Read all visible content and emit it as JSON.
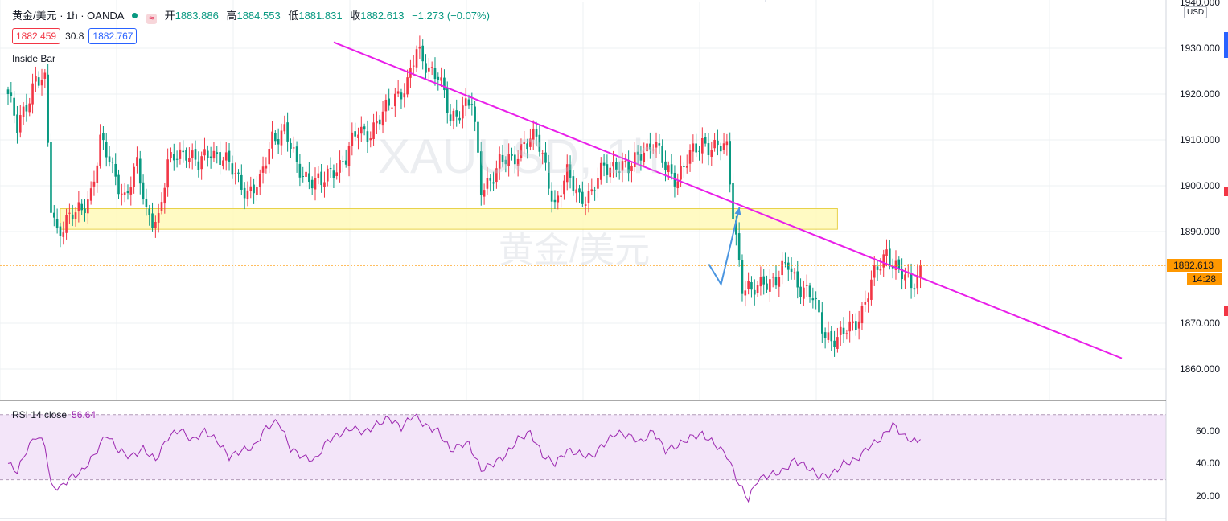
{
  "legend": {
    "symbol": "黄金/美元 · 1h · OANDA",
    "open_label": "开",
    "open": "1883.886",
    "high_label": "高",
    "high": "1884.553",
    "low_label": "低",
    "low": "1881.831",
    "close_label": "收",
    "close": "1882.613",
    "change": "−1.273 (−0.07%)",
    "pill_icon": "≈"
  },
  "quote_boxes": {
    "bid": "1882.459",
    "spread": "30.8",
    "ask": "1882.767"
  },
  "indicator_name": "Inside Bar",
  "watermark": {
    "ticker": "XAUUSD, 1h",
    "name": "黄金/美元"
  },
  "price_axis": {
    "currency": "USD",
    "ticks": [
      "1940.000",
      "1930.000",
      "1920.000",
      "1910.000",
      "1900.000",
      "1890.000",
      "1870.000",
      "1860.000"
    ],
    "last_price": "1882.613",
    "countdown": "14:28",
    "hidden_tick_fragment": "188"
  },
  "rsi": {
    "label": "RSI 14 close",
    "value": "56.64",
    "ticks": [
      "60.00",
      "40.00",
      "20.00"
    ]
  },
  "colors": {
    "up": "#f23645",
    "down": "#089981",
    "trendline": "#e91ee9",
    "zone_fill": "#fff9b8",
    "zone_border": "#e8d24a",
    "arrow": "#4a95e0",
    "rsi_line": "#9c27b0",
    "rsi_band": "#f3e5f9",
    "last_price": "#ff9800"
  },
  "chart_data": {
    "type": "candlestick",
    "timeframe": "1h",
    "y_range": [
      1852,
      1942
    ],
    "rsi_range": [
      10,
      75
    ],
    "rsi_bands": [
      30,
      70
    ],
    "anchors": [
      [
        0,
        1920
      ],
      [
        3,
        1912
      ],
      [
        6,
        1918
      ],
      [
        9,
        1924
      ],
      [
        12,
        1922
      ],
      [
        14,
        1895
      ],
      [
        16,
        1890
      ],
      [
        19,
        1893
      ],
      [
        24,
        1894
      ],
      [
        27,
        1899
      ],
      [
        30,
        1910
      ],
      [
        34,
        1903
      ],
      [
        38,
        1898
      ],
      [
        42,
        1904
      ],
      [
        45,
        1894
      ],
      [
        49,
        1893
      ],
      [
        52,
        1904
      ],
      [
        55,
        1907
      ],
      [
        58,
        1908
      ],
      [
        62,
        1904
      ],
      [
        66,
        1908
      ],
      [
        70,
        1906
      ],
      [
        74,
        1902
      ],
      [
        78,
        1899
      ],
      [
        82,
        1900
      ],
      [
        86,
        1911
      ],
      [
        90,
        1912
      ],
      [
        94,
        1904
      ],
      [
        98,
        1902
      ],
      [
        102,
        1900
      ],
      [
        106,
        1904
      ],
      [
        110,
        1906
      ],
      [
        114,
        1912
      ],
      [
        118,
        1912
      ],
      [
        122,
        1915
      ],
      [
        126,
        1920
      ],
      [
        130,
        1922
      ],
      [
        133,
        1929
      ],
      [
        136,
        1927
      ],
      [
        140,
        1924
      ],
      [
        144,
        1914
      ],
      [
        148,
        1918
      ],
      [
        151,
        1918
      ],
      [
        154,
        1899
      ],
      [
        157,
        1902
      ],
      [
        160,
        1905
      ],
      [
        164,
        1905
      ],
      [
        168,
        1910
      ],
      [
        172,
        1910
      ],
      [
        175,
        1904
      ],
      [
        178,
        1896
      ],
      [
        182,
        1902
      ],
      [
        186,
        1898
      ],
      [
        190,
        1898
      ],
      [
        194,
        1904
      ],
      [
        198,
        1905
      ],
      [
        202,
        1903
      ],
      [
        206,
        1908
      ],
      [
        210,
        1909
      ],
      [
        214,
        1904
      ],
      [
        218,
        1902
      ],
      [
        222,
        1906
      ],
      [
        226,
        1910
      ],
      [
        230,
        1908
      ],
      [
        234,
        1908
      ],
      [
        236,
        1895
      ],
      [
        239,
        1878
      ],
      [
        242,
        1876
      ],
      [
        246,
        1880
      ],
      [
        250,
        1879
      ],
      [
        254,
        1883
      ],
      [
        258,
        1878
      ],
      [
        262,
        1875
      ],
      [
        266,
        1868
      ],
      [
        270,
        1866
      ],
      [
        274,
        1869
      ],
      [
        278,
        1873
      ],
      [
        282,
        1880
      ],
      [
        286,
        1886
      ],
      [
        290,
        1881
      ],
      [
        294,
        1878
      ],
      [
        297,
        1882
      ]
    ],
    "rsi_values": [
      [
        0,
        40
      ],
      [
        3,
        35
      ],
      [
        6,
        48
      ],
      [
        9,
        57
      ],
      [
        12,
        52
      ],
      [
        14,
        26
      ],
      [
        17,
        25
      ],
      [
        20,
        31
      ],
      [
        24,
        35
      ],
      [
        28,
        45
      ],
      [
        32,
        58
      ],
      [
        36,
        48
      ],
      [
        40,
        44
      ],
      [
        44,
        49
      ],
      [
        48,
        42
      ],
      [
        52,
        56
      ],
      [
        56,
        61
      ],
      [
        60,
        54
      ],
      [
        64,
        60
      ],
      [
        68,
        54
      ],
      [
        72,
        44
      ],
      [
        76,
        48
      ],
      [
        80,
        50
      ],
      [
        84,
        62
      ],
      [
        88,
        66
      ],
      [
        92,
        49
      ],
      [
        96,
        44
      ],
      [
        100,
        42
      ],
      [
        104,
        54
      ],
      [
        108,
        58
      ],
      [
        112,
        62
      ],
      [
        116,
        59
      ],
      [
        120,
        64
      ],
      [
        124,
        68
      ],
      [
        128,
        62
      ],
      [
        132,
        70
      ],
      [
        136,
        63
      ],
      [
        140,
        60
      ],
      [
        144,
        48
      ],
      [
        148,
        52
      ],
      [
        150,
        52
      ],
      [
        154,
        36
      ],
      [
        158,
        40
      ],
      [
        162,
        45
      ],
      [
        166,
        55
      ],
      [
        170,
        59
      ],
      [
        174,
        45
      ],
      [
        178,
        40
      ],
      [
        182,
        48
      ],
      [
        186,
        46
      ],
      [
        190,
        44
      ],
      [
        194,
        52
      ],
      [
        198,
        59
      ],
      [
        202,
        57
      ],
      [
        206,
        53
      ],
      [
        210,
        60
      ],
      [
        214,
        48
      ],
      [
        218,
        51
      ],
      [
        222,
        56
      ],
      [
        226,
        58
      ],
      [
        230,
        52
      ],
      [
        234,
        45
      ],
      [
        238,
        27
      ],
      [
        241,
        18
      ],
      [
        244,
        30
      ],
      [
        248,
        33
      ],
      [
        252,
        35
      ],
      [
        256,
        42
      ],
      [
        260,
        38
      ],
      [
        264,
        32
      ],
      [
        268,
        33
      ],
      [
        272,
        40
      ],
      [
        276,
        42
      ],
      [
        280,
        50
      ],
      [
        284,
        55
      ],
      [
        288,
        64
      ],
      [
        292,
        56
      ],
      [
        296,
        53
      ],
      [
        298,
        56.64
      ]
    ]
  },
  "drawings": {
    "trendline": {
      "from": [
        106,
        1931.3
      ],
      "to": [
        282,
        1884.0
      ]
    },
    "zone": {
      "from_bar": 17,
      "to_bar": 270,
      "top": 1895.0,
      "bottom": 1890.5
    },
    "forecast_arrow": [
      [
        226,
        1882.9
      ],
      [
        230,
        1878.5
      ],
      [
        236,
        1895.3
      ]
    ]
  }
}
